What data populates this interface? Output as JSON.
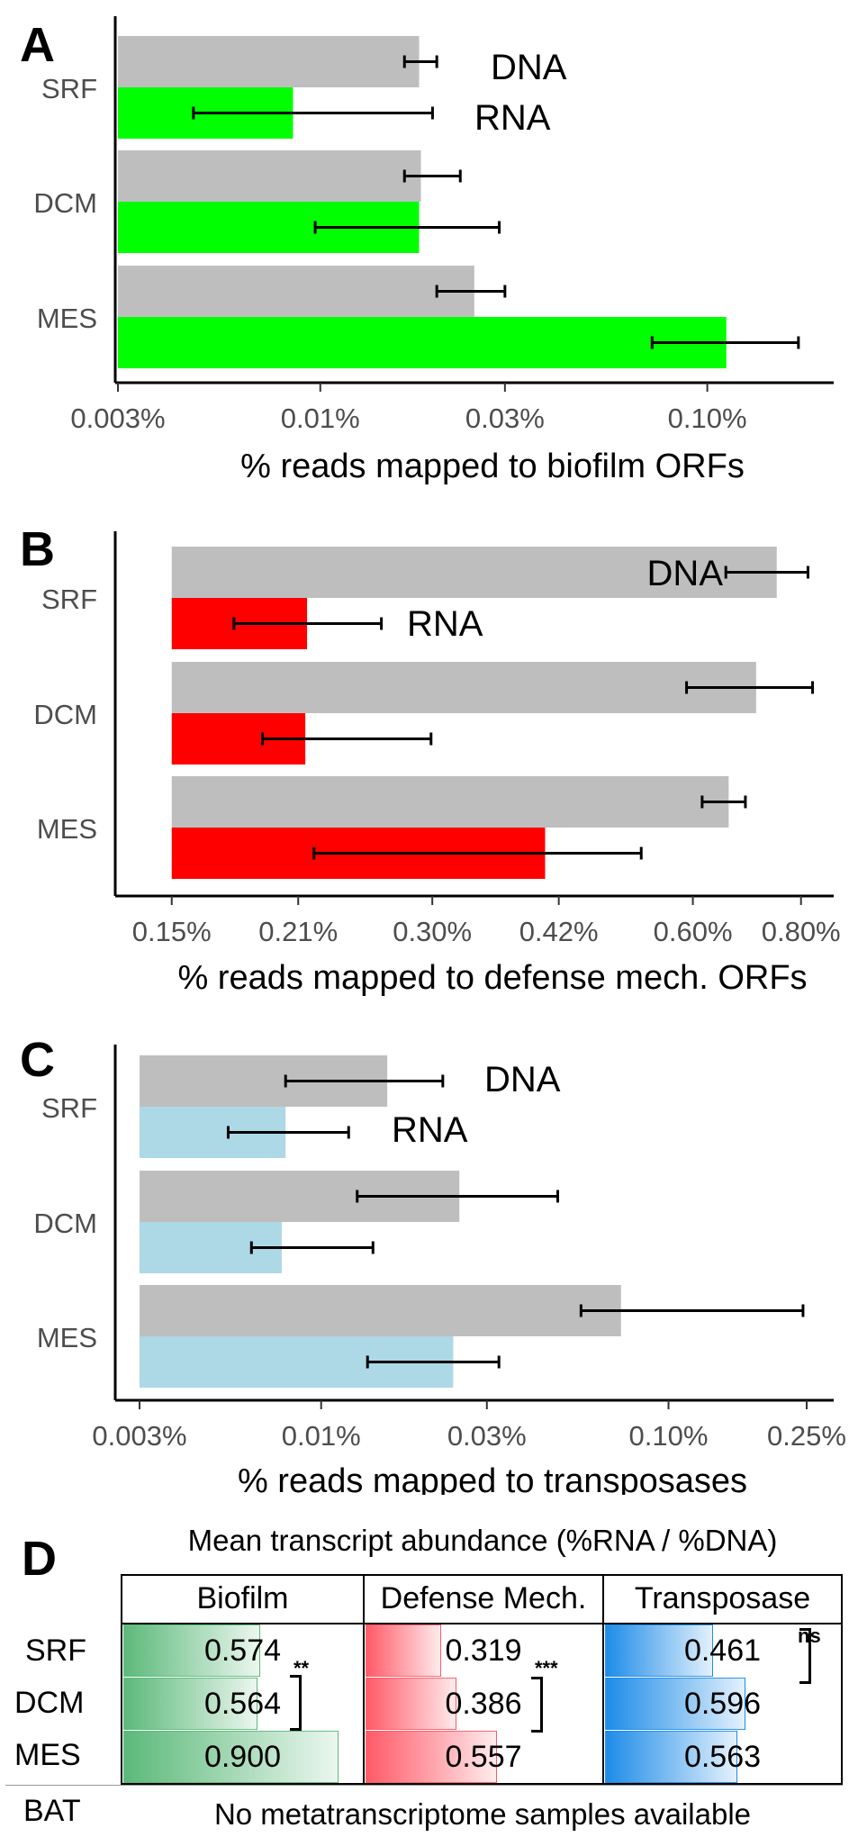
{
  "chart_data": [
    {
      "panel": "A",
      "type": "bar",
      "orientation": "horizontal",
      "x_scale": "log",
      "categories": [
        "SRF",
        "DCM",
        "MES"
      ],
      "xlabel": "% reads mapped to biofilm ORFs",
      "xlim": [
        0.003,
        0.2
      ],
      "xticks": [
        0.003,
        0.01,
        0.03,
        0.1
      ],
      "xtick_labels": [
        "0.003%",
        "0.01%",
        "0.03%",
        "0.10%"
      ],
      "bar_base": 0.003,
      "series": [
        {
          "name": "DNA",
          "color": "#bebebe",
          "values": [
            0.018,
            0.0182,
            0.025
          ],
          "err_low": [
            0.0165,
            0.0165,
            0.02
          ],
          "err_high": [
            0.02,
            0.023,
            0.03
          ]
        },
        {
          "name": "RNA",
          "color": "#00ff00",
          "values": [
            0.0085,
            0.018,
            0.112
          ],
          "err_low": [
            0.0047,
            0.0097,
            0.072
          ],
          "err_high": [
            0.0195,
            0.029,
            0.172
          ]
        }
      ]
    },
    {
      "panel": "B",
      "type": "bar",
      "orientation": "horizontal",
      "x_scale": "log",
      "categories": [
        "SRF",
        "DCM",
        "MES"
      ],
      "xlabel": "% reads mapped to defense mech. ORFs",
      "xlim": [
        0.13,
        0.85
      ],
      "xticks": [
        0.15,
        0.21,
        0.3,
        0.42,
        0.6,
        0.8
      ],
      "xtick_labels": [
        "0.15%",
        "0.21%",
        "0.30%",
        "0.42%",
        "0.60%",
        "0.80%"
      ],
      "bar_base": 0.15,
      "series": [
        {
          "name": "DNA",
          "color": "#bebebe",
          "values": [
            0.75,
            0.71,
            0.66
          ],
          "err_low": [
            0.655,
            0.59,
            0.615
          ],
          "err_high": [
            0.815,
            0.825,
            0.69
          ]
        },
        {
          "name": "RNA",
          "color": "#ff0000",
          "values": [
            0.215,
            0.214,
            0.405
          ],
          "err_low": [
            0.177,
            0.191,
            0.219
          ],
          "err_high": [
            0.262,
            0.299,
            0.523
          ]
        }
      ]
    },
    {
      "panel": "C",
      "type": "bar",
      "orientation": "horizontal",
      "x_scale": "log",
      "categories": [
        "SRF",
        "DCM",
        "MES"
      ],
      "xlabel": "% reads mapped to transposases",
      "xlim": [
        0.0026,
        0.28
      ],
      "xticks": [
        0.003,
        0.01,
        0.03,
        0.1,
        0.25
      ],
      "xtick_labels": [
        "0.003%",
        "0.01%",
        "0.03%",
        "0.10%",
        "0.25%"
      ],
      "bar_base": 0.003,
      "series": [
        {
          "name": "DNA",
          "color": "#bebebe",
          "values": [
            0.0155,
            0.025,
            0.073
          ],
          "err_low": [
            0.0079,
            0.0127,
            0.056
          ],
          "err_high": [
            0.0224,
            0.048,
            0.244
          ]
        },
        {
          "name": "RNA",
          "color": "#add8e6",
          "values": [
            0.0079,
            0.0077,
            0.024
          ],
          "err_low": [
            0.0054,
            0.0063,
            0.0136
          ],
          "err_high": [
            0.012,
            0.0141,
            0.0325
          ]
        }
      ]
    },
    {
      "panel": "D",
      "type": "table",
      "title": "Mean transcript abundance (%RNA / %DNA)",
      "columns": [
        "Biofilm",
        "Defense Mech.",
        "Transposase"
      ],
      "rows": [
        "SRF",
        "DCM",
        "MES",
        "BAT"
      ],
      "values": [
        [
          0.574,
          0.319,
          0.461
        ],
        [
          0.564,
          0.386,
          0.596
        ],
        [
          0.9,
          0.557,
          0.563
        ]
      ],
      "value_labels": [
        [
          "0.574",
          "0.319",
          "0.461"
        ],
        [
          "0.564",
          "0.386",
          "0.596"
        ],
        [
          "0.900",
          "0.557",
          "0.563"
        ]
      ],
      "bat_note": "No metatranscriptome samples available",
      "column_colors": [
        "#5cb97a",
        "#ff5a68",
        "#1e8ce8"
      ],
      "significance": [
        {
          "column": "Biofilm",
          "rows": [
            "DCM",
            "MES"
          ],
          "label": "**"
        },
        {
          "column": "Defense Mech.",
          "rows": [
            "DCM",
            "MES"
          ],
          "label": "***"
        },
        {
          "column": "Transposase",
          "rows": [
            "SRF",
            "DCM"
          ],
          "label": "ns"
        }
      ]
    }
  ]
}
